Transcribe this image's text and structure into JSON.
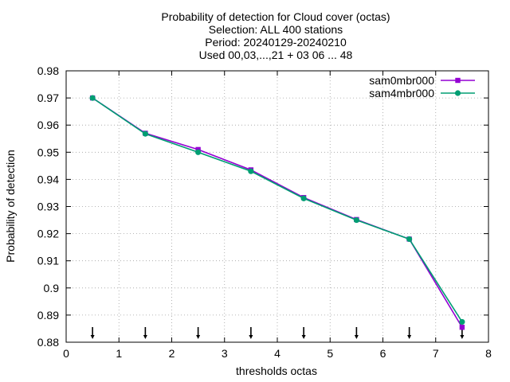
{
  "chart_data": {
    "type": "line",
    "title_lines": [
      "Probability of detection  for Cloud cover (octas)",
      "Selection: ALL    400 stations",
      "Period: 20240129-20240210",
      "Used 00,03,...,21 + 03 06 ... 48"
    ],
    "xlabel": "thresholds octas",
    "ylabel": "Probability of detection",
    "xlim": [
      0,
      8
    ],
    "ylim": [
      0.88,
      0.98
    ],
    "xticks": [
      0,
      1,
      2,
      3,
      4,
      5,
      6,
      7,
      8
    ],
    "xtick_labels": [
      "0",
      "1",
      "2",
      "3",
      "4",
      "5",
      "6",
      "7",
      "8"
    ],
    "yticks": [
      0.88,
      0.89,
      0.9,
      0.91,
      0.92,
      0.93,
      0.94,
      0.95,
      0.96,
      0.97,
      0.98
    ],
    "ytick_labels": [
      "0.88",
      "0.89",
      "0.9",
      "0.91",
      "0.92",
      "0.93",
      "0.94",
      "0.95",
      "0.96",
      "0.97",
      "0.98"
    ],
    "grid": true,
    "legend_position": "top-right",
    "x": [
      0.5,
      1.5,
      2.5,
      3.5,
      4.5,
      5.5,
      6.5,
      7.5
    ],
    "series": [
      {
        "name": "sam0mbr000",
        "color": "#9400d3",
        "marker": "square",
        "values": [
          0.97,
          0.957,
          0.951,
          0.9435,
          0.9333,
          0.9252,
          0.918,
          0.8855
        ]
      },
      {
        "name": "sam4mbr000",
        "color": "#009e73",
        "marker": "circle",
        "values": [
          0.97,
          0.9568,
          0.95,
          0.943,
          0.933,
          0.925,
          0.918,
          0.8875
        ]
      }
    ],
    "arrow_markers_x": [
      0.5,
      1.5,
      2.5,
      3.5,
      4.5,
      5.5,
      6.5,
      7.5
    ]
  }
}
